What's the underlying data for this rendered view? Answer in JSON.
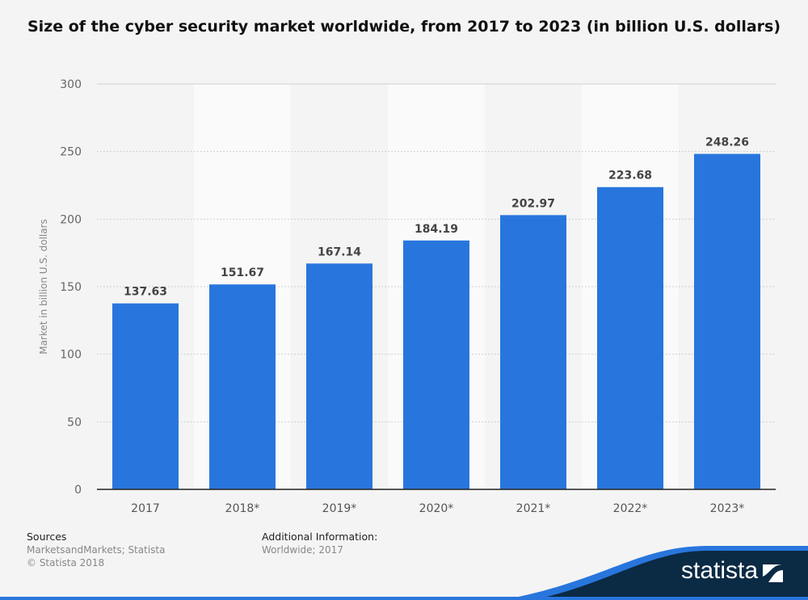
{
  "chart_data": {
    "type": "bar",
    "title": "Size of the cyber security market worldwide, from 2017 to 2023 (in billion U.S. dollars)",
    "xlabel": "",
    "ylabel": "Market in billion U.S. dollars",
    "categories": [
      "2017",
      "2018*",
      "2019*",
      "2020*",
      "2021*",
      "2022*",
      "2023*"
    ],
    "values": [
      137.63,
      151.67,
      167.14,
      184.19,
      202.97,
      223.68,
      248.26
    ],
    "value_labels": [
      "137.63",
      "151.67",
      "167.14",
      "184.19",
      "202.97",
      "223.68",
      "248.26"
    ],
    "ylim": [
      0,
      300
    ],
    "yticks": [
      "0",
      "50",
      "100",
      "150",
      "200",
      "250",
      "300"
    ],
    "grid": true,
    "bar_color": "#2876dd"
  },
  "footer": {
    "sources_heading": "Sources",
    "sources_text": "MarketsandMarkets; Statista",
    "copyright": "© Statista 2018",
    "additional_heading": "Additional Information:",
    "additional_text": "Worldwide; 2017"
  },
  "brand": {
    "logo_text": "statista",
    "colors": {
      "navy": "#0b2a44",
      "blue": "#2876dd"
    }
  }
}
